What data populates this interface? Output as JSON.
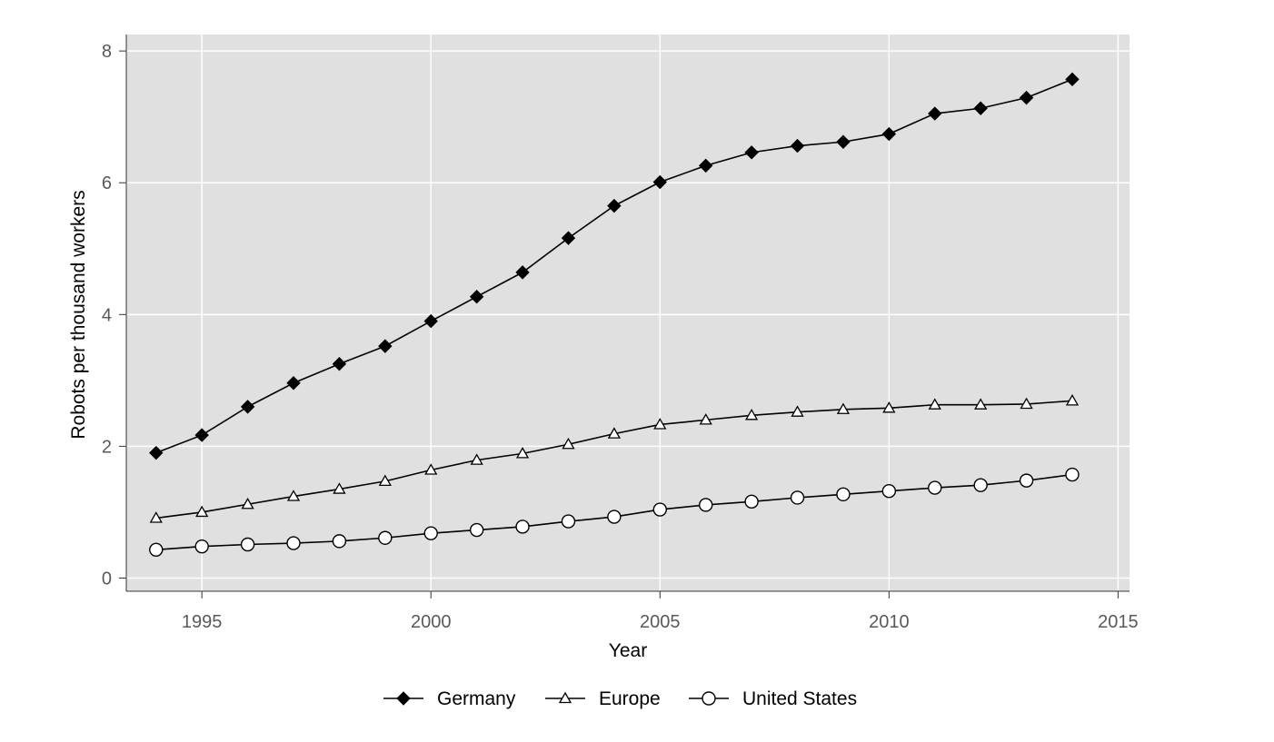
{
  "chart_data": {
    "type": "line",
    "xlabel": "Year",
    "ylabel": "Robots per thousand workers",
    "xlim": [
      1993.35,
      1995.0,
      2015.25
    ],
    "ylim": [
      -0.2,
      8.25
    ],
    "x_ticks": [
      1995,
      2000,
      2005,
      2010,
      2015
    ],
    "y_ticks": [
      0,
      2,
      4,
      6,
      8
    ],
    "x_tick_labels": [
      "1995",
      "2000",
      "2005",
      "2010",
      "2015"
    ],
    "y_tick_labels": [
      "0",
      "2",
      "4",
      "6",
      "8"
    ],
    "grid": true,
    "legend_position": "bottom",
    "plot_background": "#e0e0e0",
    "grid_color": "#ffffff",
    "x": [
      1994,
      1995,
      1996,
      1997,
      1998,
      1999,
      2000,
      2001,
      2002,
      2003,
      2004,
      2005,
      2006,
      2007,
      2008,
      2009,
      2010,
      2011,
      2012,
      2013,
      2014
    ],
    "series": [
      {
        "name": "Germany",
        "marker": "diamond",
        "marker_fill": "#000000",
        "color": "#000000",
        "values": [
          1.9,
          2.17,
          2.6,
          2.96,
          3.25,
          3.52,
          3.9,
          4.27,
          4.64,
          5.16,
          5.65,
          6.01,
          6.26,
          6.46,
          6.56,
          6.62,
          6.74,
          7.05,
          7.13,
          7.29,
          7.57
        ]
      },
      {
        "name": "Europe",
        "marker": "triangle",
        "marker_fill": "#ffffff",
        "color": "#000000",
        "values": [
          0.91,
          1.0,
          1.12,
          1.24,
          1.35,
          1.47,
          1.64,
          1.79,
          1.89,
          2.03,
          2.19,
          2.33,
          2.4,
          2.47,
          2.52,
          2.56,
          2.58,
          2.63,
          2.63,
          2.64,
          2.69
        ]
      },
      {
        "name": "United States",
        "marker": "circle",
        "marker_fill": "#ffffff",
        "color": "#000000",
        "values": [
          0.43,
          0.48,
          0.51,
          0.53,
          0.56,
          0.61,
          0.68,
          0.73,
          0.78,
          0.86,
          0.93,
          1.04,
          1.11,
          1.16,
          1.22,
          1.27,
          1.32,
          1.37,
          1.41,
          1.48,
          1.57
        ]
      }
    ]
  }
}
